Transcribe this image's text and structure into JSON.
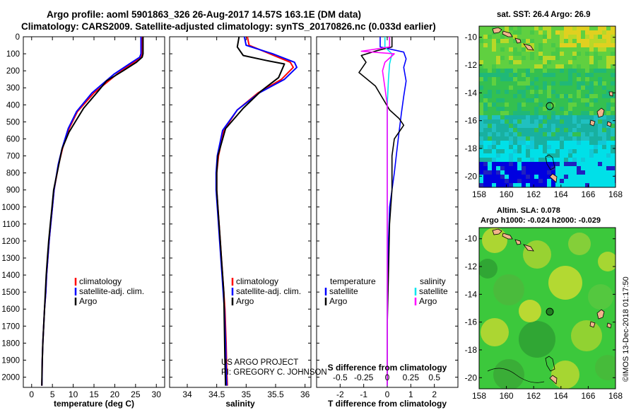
{
  "header": {
    "line1": "Argo profile: aoml 5901863_326 26-Aug-2017 14.57S 163.1E (DM data)",
    "line2": "Climatology: CARS2009. Satellite-adjusted climatology: synTS_20170826.nc (0.033d earlier)"
  },
  "credits": {
    "project": "US ARGO PROJECT",
    "pi": "PI: GREGORY C. JOHNSON",
    "imos": "©IMOS 13-Dec-2018 01:17:50"
  },
  "colors": {
    "climatology": "#ff0000",
    "satellite": "#0000ff",
    "argo": "#000000",
    "sat_salinity": "#00e5ee",
    "argo_salinity": "#ff00ff",
    "land": "#f2b48c",
    "ocean_green": "#3cc83c",
    "ocean_yellow": "#d8e020",
    "ocean_cyan": "#00e8e8",
    "ocean_blue": "#0000e0",
    "argo_marker": "#208020"
  },
  "depth_axis": {
    "ticks": [
      0,
      100,
      200,
      300,
      400,
      500,
      600,
      700,
      800,
      900,
      1000,
      1100,
      1200,
      1300,
      1400,
      1500,
      1600,
      1700,
      1800,
      1900,
      2000
    ],
    "range": [
      0,
      2060
    ],
    "inverted": true
  },
  "panels": {
    "temperature": {
      "xlabel": "temperature (deg C)",
      "legend": [
        "climatology",
        "satellite-adj. clim.",
        "Argo"
      ]
    },
    "salinity": {
      "xlabel": "salinity",
      "legend": [
        "climatology",
        "satellite-adj. clim.",
        "Argo"
      ]
    },
    "difference": {
      "xlabel_t": "T difference from climatology",
      "xlabel_s": "S difference from climatology",
      "legend_left_title": "temperature",
      "legend_left": [
        "satellite",
        "Argo"
      ],
      "legend_right_title": "salinity",
      "legend_right": [
        "satellite",
        "Argo"
      ]
    },
    "map_sst": {
      "title": "sat. SST: 26.4 Argo: 26.9"
    },
    "map_sla": {
      "title1": "Altim. SLA: 0.078",
      "title2": "Argo h1000: -0.024 h2000: -0.029"
    }
  },
  "chart_data": [
    {
      "type": "line",
      "xlabel": "temperature (deg C)",
      "ylabel": "",
      "xlim": [
        -2,
        32
      ],
      "xticks": [
        0,
        5,
        10,
        15,
        20,
        25,
        30
      ],
      "ylim": [
        0,
        2060
      ],
      "series": [
        {
          "name": "climatology",
          "x": [
            26.6,
            26.6,
            26.3,
            24.0,
            20.5,
            15.0,
            11.0,
            9.0,
            7.5,
            6.5,
            5.4,
            5.0,
            4.6,
            4.2,
            3.9,
            3.6,
            3.4,
            3.1,
            2.9,
            2.7,
            2.55,
            2.5,
            2.45
          ],
          "y": [
            0,
            100,
            120,
            160,
            220,
            330,
            440,
            540,
            650,
            750,
            900,
            1000,
            1100,
            1200,
            1300,
            1400,
            1500,
            1600,
            1700,
            1800,
            1900,
            2000,
            2050
          ]
        },
        {
          "name": "satellite-adj. clim.",
          "x": [
            26.3,
            26.3,
            26.0,
            23.5,
            19.8,
            14.5,
            10.8,
            8.8,
            7.4,
            6.4,
            5.4,
            5.0,
            4.6,
            4.2,
            3.9,
            3.6,
            3.4,
            3.1,
            2.9,
            2.7,
            2.55,
            2.5,
            2.45
          ],
          "y": [
            0,
            100,
            120,
            160,
            220,
            330,
            440,
            540,
            650,
            750,
            900,
            1000,
            1100,
            1200,
            1300,
            1400,
            1500,
            1600,
            1700,
            1800,
            1900,
            2000,
            2050
          ]
        },
        {
          "name": "Argo",
          "x": [
            26.8,
            26.8,
            26.6,
            25.2,
            22.0,
            18.0,
            16.0,
            12.5,
            10.5,
            9.0,
            7.3,
            6.3,
            5.3,
            4.9,
            4.5,
            4.1,
            3.8,
            3.5,
            3.3,
            3.1,
            2.9,
            2.7,
            2.5,
            2.45
          ],
          "y": [
            0,
            100,
            120,
            150,
            200,
            260,
            320,
            420,
            500,
            560,
            660,
            780,
            900,
            1000,
            1100,
            1200,
            1300,
            1400,
            1500,
            1600,
            1700,
            1800,
            1950,
            2050
          ]
        }
      ]
    },
    {
      "type": "line",
      "xlabel": "salinity",
      "ylabel": "",
      "xlim": [
        33.7,
        36.1
      ],
      "xticks": [
        34,
        34.5,
        35,
        35.5,
        36
      ],
      "ylim": [
        0,
        2060
      ],
      "series": [
        {
          "name": "climatology",
          "x": [
            35.02,
            35.05,
            35.4,
            35.75,
            35.8,
            35.6,
            35.2,
            34.85,
            34.62,
            34.53,
            34.5,
            34.5,
            34.52,
            34.54,
            34.56,
            34.58,
            34.6,
            34.62,
            34.64,
            34.66,
            34.67,
            34.68
          ],
          "y": [
            0,
            50,
            100,
            150,
            180,
            250,
            330,
            430,
            550,
            700,
            800,
            900,
            1000,
            1100,
            1200,
            1300,
            1400,
            1500,
            1600,
            1800,
            1950,
            2050
          ]
        },
        {
          "name": "satellite-adj. clim.",
          "x": [
            34.97,
            35.0,
            35.45,
            35.82,
            35.86,
            35.65,
            35.22,
            34.85,
            34.6,
            34.51,
            34.49,
            34.49,
            34.51,
            34.53,
            34.55,
            34.57,
            34.59,
            34.61,
            34.63,
            34.65,
            34.66,
            34.67
          ],
          "y": [
            0,
            50,
            100,
            150,
            180,
            250,
            330,
            430,
            550,
            700,
            800,
            900,
            1000,
            1100,
            1200,
            1300,
            1400,
            1500,
            1600,
            1800,
            1950,
            2050
          ]
        },
        {
          "name": "Argo",
          "x": [
            34.88,
            34.85,
            34.95,
            35.35,
            35.65,
            35.55,
            35.25,
            34.95,
            34.65,
            34.52,
            34.5,
            34.5,
            34.52,
            34.54,
            34.56,
            34.58,
            34.6,
            34.62,
            34.63,
            34.64,
            34.65
          ],
          "y": [
            0,
            60,
            110,
            140,
            160,
            240,
            320,
            420,
            540,
            700,
            800,
            900,
            1000,
            1100,
            1200,
            1300,
            1400,
            1500,
            1700,
            1900,
            2050
          ]
        }
      ]
    },
    {
      "type": "line",
      "xlabel": "T difference from climatology",
      "ylabel": "",
      "xlim": [
        -3,
        3
      ],
      "xticks": [
        -2,
        -1,
        0,
        1,
        2
      ],
      "ylim": [
        0,
        2060
      ],
      "series": [
        {
          "name": "temperature satellite",
          "x": [
            -0.3,
            -0.3,
            0.7,
            0.8,
            0.7,
            0.8,
            0.7,
            0.6,
            0.5,
            0.4,
            0.3,
            0.2,
            0.1,
            0.05,
            0.0,
            0.0,
            0.0
          ],
          "y": [
            0,
            60,
            90,
            130,
            180,
            260,
            350,
            450,
            560,
            680,
            800,
            900,
            1000,
            1200,
            1500,
            1800,
            2050
          ]
        },
        {
          "name": "temperature Argo",
          "x": [
            0.2,
            0.2,
            -0.4,
            -1.1,
            -0.9,
            -1.2,
            -0.5,
            -0.2,
            0.1,
            0.5,
            0.7,
            0.3,
            0.2,
            0.2,
            0.1,
            0.05,
            0.0,
            0.0
          ],
          "y": [
            0,
            60,
            80,
            110,
            150,
            210,
            290,
            360,
            430,
            480,
            520,
            600,
            700,
            900,
            1100,
            1400,
            1700,
            2050
          ]
        },
        {
          "name": "salinity satellite",
          "x": [
            -0.1,
            -0.1,
            0.05,
            0.2,
            0.1,
            0.05,
            0.0,
            0.0,
            0.0,
            0.0,
            0.0
          ],
          "y": [
            0,
            60,
            80,
            100,
            160,
            250,
            400,
            600,
            900,
            1300,
            2050
          ]
        },
        {
          "name": "salinity Argo",
          "x": [
            0.1,
            0.1,
            -1.1,
            0.3,
            -0.1,
            -0.2,
            -0.1,
            0.0,
            0.0
          ],
          "y": [
            0,
            60,
            85,
            100,
            150,
            200,
            300,
            400,
            2050
          ]
        }
      ]
    }
  ]
}
